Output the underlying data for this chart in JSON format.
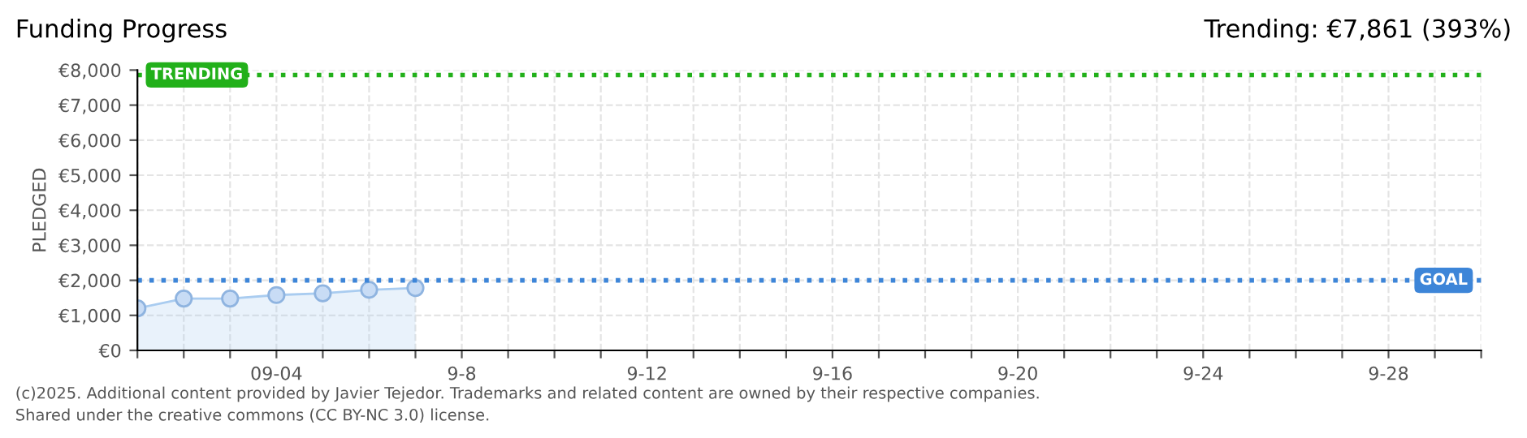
{
  "chart_data": {
    "type": "area",
    "title": "Funding Progress",
    "subtitle": "Trending: €7,861 (393%)",
    "ylabel": "PLEDGED",
    "x": [
      "2025-09-01",
      "2025-09-02",
      "2025-09-03",
      "2025-09-04",
      "2025-09-05",
      "2025-09-06",
      "2025-09-07"
    ],
    "series": [
      {
        "color": "#a9ccf0",
        "values": [
          1200,
          1480,
          1480,
          1580,
          1630,
          1730,
          1780
        ]
      }
    ],
    "marker": "circle",
    "grid": true,
    "xlim": [
      "2025-09-01",
      "2025-09-30"
    ],
    "xticks": [
      {
        "value": "2025-09-01",
        "label": null
      },
      {
        "value": "2025-09-02",
        "label": null
      },
      {
        "value": "2025-09-03",
        "label": null
      },
      {
        "value": "2025-09-04",
        "label": "09-04"
      },
      {
        "value": "2025-09-05",
        "label": null
      },
      {
        "value": "2025-09-06",
        "label": null
      },
      {
        "value": "2025-09-07",
        "label": null
      },
      {
        "value": "2025-09-08",
        "label": "9-8"
      },
      {
        "value": "2025-09-09",
        "label": null
      },
      {
        "value": "2025-09-10",
        "label": null
      },
      {
        "value": "2025-09-11",
        "label": null
      },
      {
        "value": "2025-09-12",
        "label": "9-12"
      },
      {
        "value": "2025-09-13",
        "label": null
      },
      {
        "value": "2025-09-14",
        "label": null
      },
      {
        "value": "2025-09-15",
        "label": null
      },
      {
        "value": "2025-09-16",
        "label": "9-16"
      },
      {
        "value": "2025-09-17",
        "label": null
      },
      {
        "value": "2025-09-18",
        "label": null
      },
      {
        "value": "2025-09-19",
        "label": null
      },
      {
        "value": "2025-09-20",
        "label": "9-20"
      },
      {
        "value": "2025-09-21",
        "label": null
      },
      {
        "value": "2025-09-22",
        "label": null
      },
      {
        "value": "2025-09-23",
        "label": null
      },
      {
        "value": "2025-09-24",
        "label": "9-24"
      },
      {
        "value": "2025-09-25",
        "label": null
      },
      {
        "value": "2025-09-26",
        "label": null
      },
      {
        "value": "2025-09-27",
        "label": null
      },
      {
        "value": "2025-09-28",
        "label": "9-28"
      },
      {
        "value": "2025-09-29",
        "label": null
      },
      {
        "value": "2025-09-30",
        "label": null
      }
    ],
    "ylim": [
      0,
      8000
    ],
    "yticks": [
      {
        "value": 0,
        "label": "€0"
      },
      {
        "value": 1000,
        "label": "€1,000"
      },
      {
        "value": 2000,
        "label": "€2,000"
      },
      {
        "value": 3000,
        "label": "€3,000"
      },
      {
        "value": 4000,
        "label": "€4,000"
      },
      {
        "value": 5000,
        "label": "€5,000"
      },
      {
        "value": 6000,
        "label": "€6,000"
      },
      {
        "value": 7000,
        "label": "€7,000"
      },
      {
        "value": 8000,
        "label": "€8,000"
      }
    ],
    "ref_lines": [
      {
        "axis": "y",
        "value": 2000,
        "label": "GOAL",
        "color": "#3d85d8",
        "line_style": "dotted"
      },
      {
        "axis": "y",
        "value": 7861,
        "label": "TRENDING",
        "color": "#22b01a",
        "line_style": "dotted"
      }
    ],
    "annotations": [
      "(c)2025. Additional content provided by Javier Tejedor. Trademarks and related content are owned by their respective companies.",
      "Shared under the creative commons (CC BY-NC 3.0) license."
    ]
  }
}
